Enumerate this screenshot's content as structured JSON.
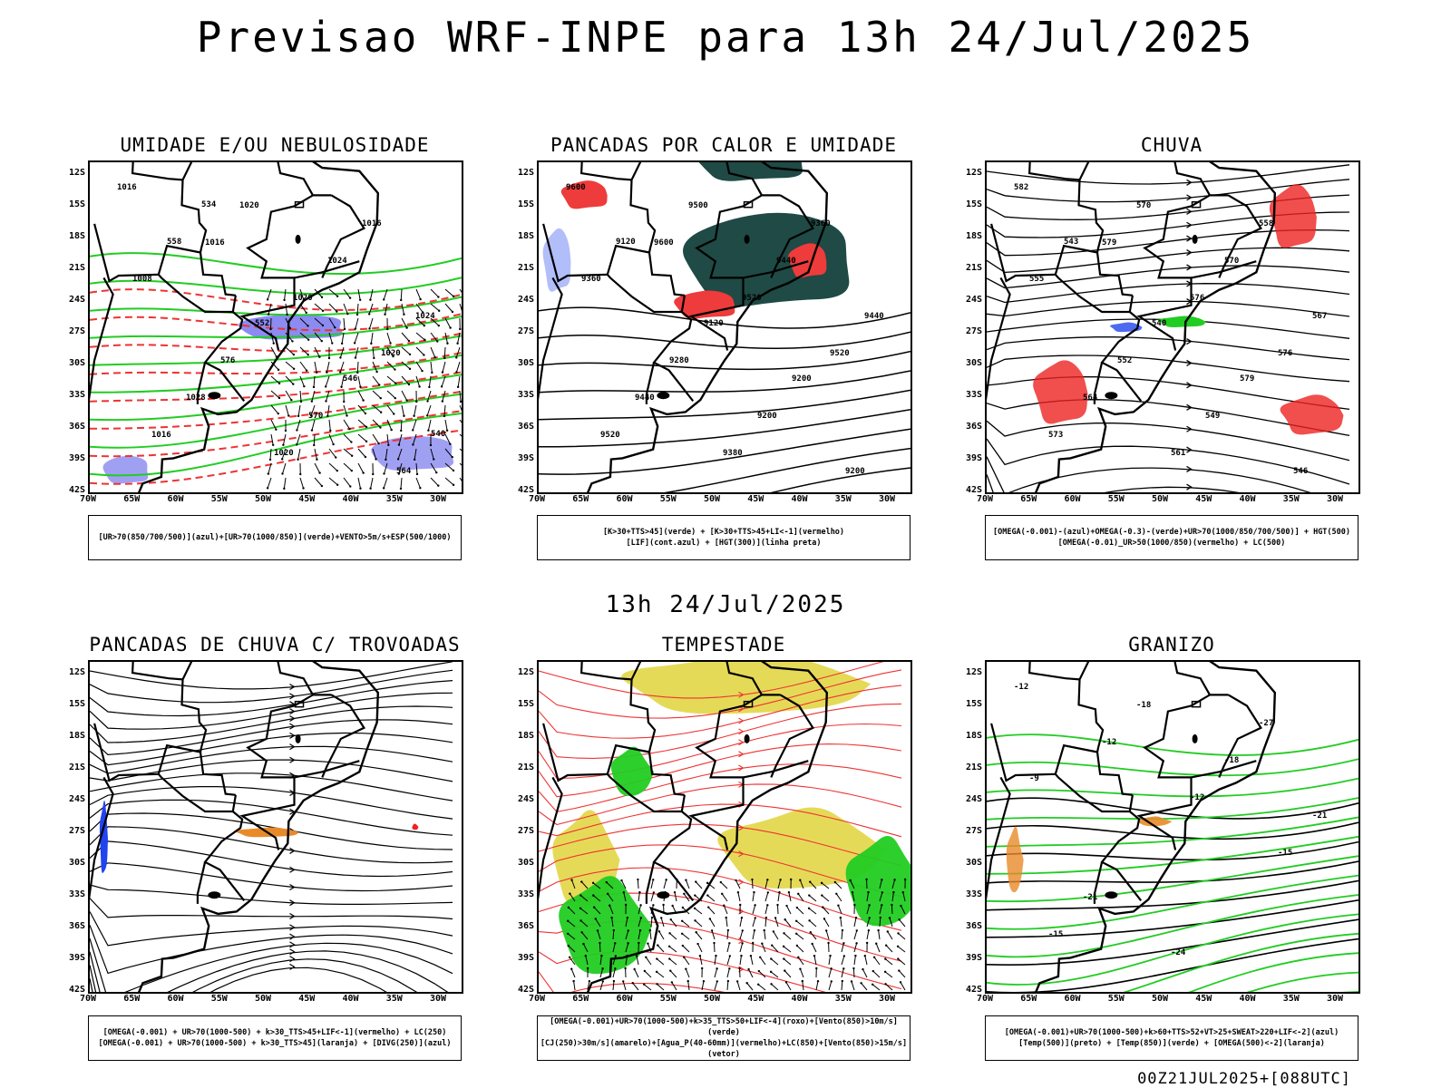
{
  "page": {
    "title": "Previsao WRF-INPE  para 13h 24/Jul/2025",
    "mid_title": "13h 24/Jul/2025",
    "footer": "00Z21JUL2025+[088UTC]"
  },
  "axes": {
    "lat_labels": [
      "12S",
      "15S",
      "18S",
      "21S",
      "24S",
      "27S",
      "30S",
      "33S",
      "36S",
      "39S",
      "42S"
    ],
    "lon_labels": [
      "70W",
      "65W",
      "60W",
      "55W",
      "50W",
      "45W",
      "40W",
      "35W",
      "30W"
    ]
  },
  "panels": [
    {
      "id": "umidade",
      "title": "UMIDADE E/OU NEBULOSIDADE",
      "legend": [
        "[UR>70(850/700/500)](azul)+[UR>70(1000/850)](verde)+VENTO>5m/s+ESP(500/1000)"
      ],
      "labels": [
        "1016",
        "1016",
        "1020",
        "1020",
        "1016",
        "1020",
        "1024",
        "1024",
        "1028",
        "1020",
        "1016",
        "1008",
        "576",
        "570",
        "564",
        "558",
        "552",
        "546",
        "540",
        "534"
      ],
      "colors": {
        "moisture_low": "#22cc22",
        "moisture_high": "#7777ee",
        "thickness": "#ee3333",
        "isobar": "#000000"
      }
    },
    {
      "id": "pancadas-calor",
      "title": "PANCADAS POR CALOR E UMIDADE",
      "legend": [
        "[K>30+TTS>45](verde) + [K>30+TTS>45+LI<-1](vermelho)",
        "[LIF](cont.azul) + [HGT(300)](linha preta)"
      ],
      "labels": [
        "9600",
        "9600",
        "9520",
        "9520",
        "9520",
        "9500",
        "9440",
        "9440",
        "9440",
        "9380",
        "9360",
        "9360",
        "9280",
        "9200",
        "9200",
        "9120",
        "9120",
        "9200"
      ],
      "colors": {
        "stable": "#1f4a45",
        "unstable": "#ee3b3b",
        "lif": "#2244ee",
        "hgt": "#000000"
      }
    },
    {
      "id": "chuva",
      "title": "CHUVA",
      "legend": [
        "[OMEGA(-0.001)-(azul)+OMEGA(-0.3)-(verde)+UR>70(1000/850/700/500)] + HGT(500)",
        "[OMEGA(-0.01)_UR>50(1000/850)(vermelho) + LC(500)"
      ],
      "labels": [
        "582",
        "579",
        "576",
        "576",
        "573",
        "570",
        "570",
        "567",
        "564",
        "561",
        "558",
        "555",
        "552",
        "549",
        "546",
        "543",
        "540",
        "579"
      ],
      "colors": {
        "rain_red": "#ee2222",
        "rain_blue": "#2244ee",
        "rain_green": "#22cc22",
        "hgt": "#000000"
      }
    },
    {
      "id": "pancadas-trovoadas",
      "title": "PANCADAS DE CHUVA C/ TROVOADAS",
      "legend": [
        "[OMEGA(-0.001) + UR>70(1000-500) + k>30_TTS>45+LIF<-1](vermelho) + LC(250)",
        "[OMEGA(-0.001) + UR>70(1000-500) + k>30_TTS>45](laranja) + [DIVG(250)](azul)"
      ],
      "labels": [],
      "colors": {
        "storm_orange": "#e88a2a",
        "storm_red": "#ee2222",
        "divg": "#2244ee",
        "streamline": "#000000"
      }
    },
    {
      "id": "tempestade",
      "title": "TEMPESTADE",
      "legend": [
        "[OMEGA(-0.001)+UR>70(1000-500)+k>35_TTS>50+LIF<-4](roxo)+[Vento(850)>10m/s](verde)",
        "[CJ(250)>30m/s](amarelo)+[Agua_P(40-60mm)](vermelho)+LC(850)+[Vento(850)>15m/s](vetor)"
      ],
      "labels": [],
      "colors": {
        "jet": "#e0d43a",
        "wind": "#22cc22",
        "stream": "#ee3333",
        "vector": "#000000"
      }
    },
    {
      "id": "granizo",
      "title": "GRANIZO",
      "legend": [
        "[OMEGA(-0.001)+UR>70(1000-500)+k>60+TTS>52+VT>25+SWEAT>220+LIF<-2](azul)",
        "[Temp(500)](preto) + [Temp(850)](verde) + [OMEGA(500)<-2](laranja)"
      ],
      "labels": [
        "-12",
        "-12",
        "-12",
        "-15",
        "-15",
        "-18",
        "-18",
        "-21",
        "-21",
        "-24",
        "-27",
        "-9"
      ],
      "colors": {
        "t850": "#22cc22",
        "t500": "#000000",
        "omega": "#e88a2a"
      }
    }
  ]
}
